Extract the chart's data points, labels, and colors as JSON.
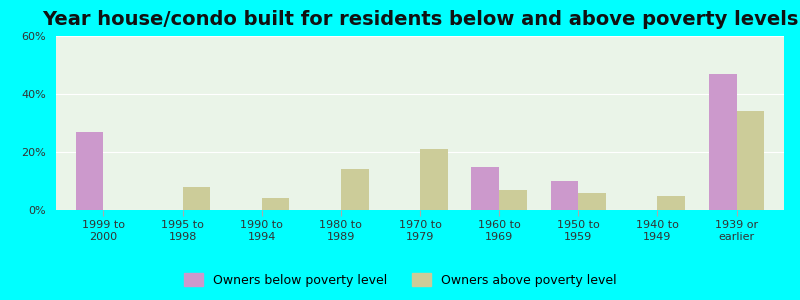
{
  "title": "Year house/condo built for residents below and above poverty levels",
  "categories": [
    "1999 to\n2000",
    "1995 to\n1998",
    "1990 to\n1994",
    "1980 to\n1989",
    "1970 to\n1979",
    "1960 to\n1969",
    "1950 to\n1959",
    "1940 to\n1949",
    "1939 or\nearlier"
  ],
  "below_poverty": [
    27,
    0,
    0,
    0,
    0,
    15,
    10,
    0,
    47
  ],
  "above_poverty": [
    0,
    8,
    4,
    14,
    21,
    7,
    6,
    5,
    34
  ],
  "below_color": "#cc99cc",
  "above_color": "#cccc99",
  "background_color": "#00ffff",
  "plot_bg": "#eaf4e8",
  "ylim": [
    0,
    60
  ],
  "yticks": [
    0,
    20,
    40,
    60
  ],
  "ytick_labels": [
    "0%",
    "20%",
    "40%",
    "60%"
  ],
  "title_fontsize": 14,
  "legend_label_below": "Owners below poverty level",
  "legend_label_above": "Owners above poverty level",
  "bar_width": 0.35
}
